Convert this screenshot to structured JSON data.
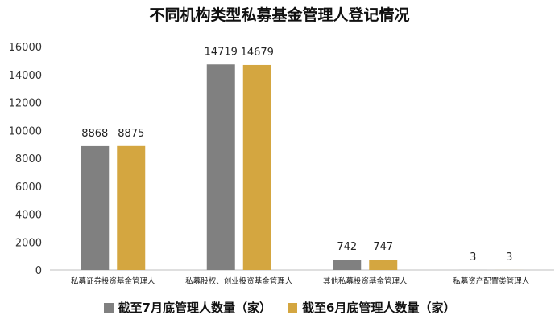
{
  "chart_data": {
    "type": "bar",
    "title": "不同机构类型私募基金管理人登记情况",
    "xlabel": "",
    "ylabel": "",
    "categories": [
      "私募证券投资基金管理人",
      "私募股权、创业投资基金管理人",
      "其他私募投资基金管理人",
      "私募资产配置类管理人"
    ],
    "series": [
      {
        "name": "截至7月底管理人数量（家）",
        "values": [
          8868,
          14719,
          742,
          3
        ],
        "labels": [
          "8868",
          "14719",
          "742",
          "3"
        ],
        "color": "#808080"
      },
      {
        "name": "截至6月底管理人数量（家）",
        "values": [
          8875,
          14679,
          747,
          3
        ],
        "labels": [
          "8875",
          "14679",
          "747",
          "3"
        ],
        "color": "#D4A640"
      }
    ],
    "ylim": [
      0,
      16000
    ],
    "yticks": [
      0,
      2000,
      4000,
      6000,
      8000,
      10000,
      12000,
      14000,
      16000
    ],
    "grid": false,
    "legend_position": "bottom"
  }
}
